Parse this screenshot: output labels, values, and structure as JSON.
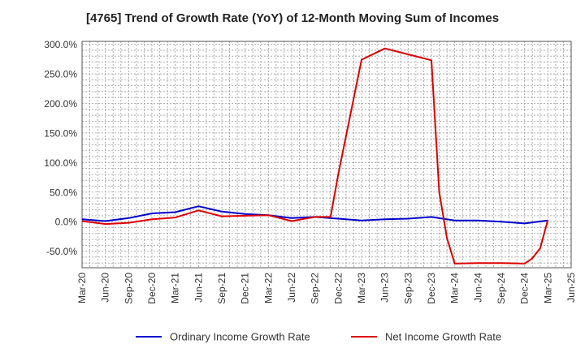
{
  "chart_data": {
    "type": "line",
    "title": "[4765]  Trend of Growth Rate (YoY) of 12-Month Moving Sum of Incomes",
    "xlabel": "",
    "ylabel": "",
    "x_ticks": [
      "Mar-20",
      "Jun-20",
      "Sep-20",
      "Dec-20",
      "Mar-21",
      "Jun-21",
      "Sep-21",
      "Dec-21",
      "Mar-22",
      "Jun-22",
      "Sep-22",
      "Dec-22",
      "Mar-23",
      "Jun-23",
      "Sep-23",
      "Dec-23",
      "Mar-24",
      "Jun-24",
      "Sep-24",
      "Dec-24",
      "Mar-25",
      "Jun-25"
    ],
    "y_ticks": [
      "300.0%",
      "250.0%",
      "200.0%",
      "150.0%",
      "100.0%",
      "50.0%",
      "0.0%",
      "-50.0%"
    ],
    "y_tick_values": [
      300,
      250,
      200,
      150,
      100,
      50,
      0,
      -50
    ],
    "ylim": [
      -78,
      305
    ],
    "grid": true,
    "legend_position": "bottom",
    "series": [
      {
        "name": "Ordinary Income Growth Rate",
        "color": "#0000cc",
        "points": [
          [
            "Mar-20",
            4
          ],
          [
            "Jun-20",
            1
          ],
          [
            "Sep-20",
            6
          ],
          [
            "Dec-20",
            14
          ],
          [
            "Mar-21",
            16
          ],
          [
            "Jun-21",
            26
          ],
          [
            "Sep-21",
            17
          ],
          [
            "Dec-21",
            13
          ],
          [
            "Mar-22",
            11
          ],
          [
            "Jun-22",
            6
          ],
          [
            "Sep-22",
            8
          ],
          [
            "Dec-22",
            5
          ],
          [
            "Mar-23",
            2
          ],
          [
            "Jun-23",
            4
          ],
          [
            "Sep-23",
            5
          ],
          [
            "Dec-23",
            8
          ],
          [
            "Mar-24",
            2
          ],
          [
            "Jun-24",
            2
          ],
          [
            "Sep-24",
            0
          ],
          [
            "Dec-24",
            -3
          ],
          [
            "Mar-25",
            2
          ]
        ]
      },
      {
        "name": "Net Income Growth Rate",
        "color": "#dd0000",
        "points": [
          [
            "Mar-20",
            1
          ],
          [
            "Jun-20",
            -4
          ],
          [
            "Sep-20",
            -2
          ],
          [
            "Dec-20",
            4
          ],
          [
            "Mar-21",
            7
          ],
          [
            "Jun-21",
            19
          ],
          [
            "Sep-21",
            9
          ],
          [
            "Dec-21",
            10
          ],
          [
            "Mar-22",
            11
          ],
          [
            "Jun-22",
            1
          ],
          [
            "Sep-22",
            8
          ],
          [
            "Nov-22",
            8
          ],
          [
            "Dec-22",
            80
          ],
          [
            "Mar-23",
            274
          ],
          [
            "Jun-23",
            293
          ],
          [
            "Sep-23",
            283
          ],
          [
            "Dec-23",
            273
          ],
          [
            "Jan-24",
            50
          ],
          [
            "Feb-24",
            -28
          ],
          [
            "Mar-24",
            -71
          ],
          [
            "Jun-24",
            -70
          ],
          [
            "Sep-24",
            -70
          ],
          [
            "Dec-24",
            -71
          ],
          [
            "Jan-25",
            -62
          ],
          [
            "Feb-25",
            -45
          ],
          [
            "Mar-25",
            3
          ]
        ]
      }
    ]
  }
}
